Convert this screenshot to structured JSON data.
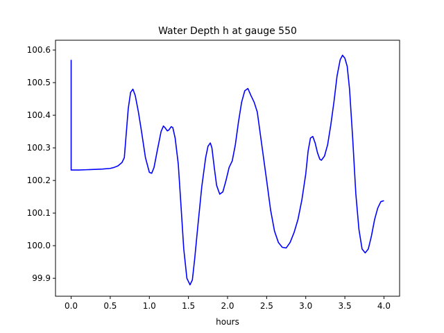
{
  "chart_data": {
    "type": "line",
    "title": "Water Depth h at gauge 550",
    "xlabel": "hours",
    "ylabel": "",
    "xlim": [
      -0.2,
      4.2
    ],
    "ylim": [
      99.845,
      100.63
    ],
    "xticks": [
      0.0,
      0.5,
      1.0,
      1.5,
      2.0,
      2.5,
      3.0,
      3.5,
      4.0
    ],
    "xtick_labels": [
      "0.0",
      "0.5",
      "1.0",
      "1.5",
      "2.0",
      "2.5",
      "3.0",
      "3.5",
      "4.0"
    ],
    "yticks": [
      99.9,
      100.0,
      100.1,
      100.2,
      100.3,
      100.4,
      100.5,
      100.6
    ],
    "ytick_labels": [
      "99.9",
      "100.0",
      "100.1",
      "100.2",
      "100.3",
      "100.4",
      "100.5",
      "100.6"
    ],
    "grid": false,
    "legend": "none",
    "series": [
      {
        "color": "#0000ff",
        "x": [
          0.0,
          0.0,
          0.0,
          0.1,
          0.2,
          0.3,
          0.4,
          0.5,
          0.55,
          0.6,
          0.65,
          0.68,
          0.7,
          0.73,
          0.76,
          0.79,
          0.82,
          0.86,
          0.9,
          0.95,
          1.0,
          1.03,
          1.06,
          1.1,
          1.15,
          1.18,
          1.2,
          1.23,
          1.25,
          1.28,
          1.3,
          1.33,
          1.37,
          1.4,
          1.44,
          1.48,
          1.52,
          1.55,
          1.58,
          1.62,
          1.67,
          1.72,
          1.75,
          1.78,
          1.8,
          1.83,
          1.86,
          1.9,
          1.94,
          1.98,
          2.02,
          2.06,
          2.1,
          2.14,
          2.18,
          2.22,
          2.26,
          2.3,
          2.34,
          2.38,
          2.42,
          2.46,
          2.5,
          2.55,
          2.6,
          2.65,
          2.7,
          2.75,
          2.8,
          2.85,
          2.9,
          2.95,
          3.0,
          3.03,
          3.06,
          3.09,
          3.12,
          3.15,
          3.18,
          3.2,
          3.24,
          3.28,
          3.32,
          3.36,
          3.4,
          3.44,
          3.47,
          3.5,
          3.53,
          3.56,
          3.6,
          3.64,
          3.68,
          3.72,
          3.76,
          3.8,
          3.84,
          3.88,
          3.92,
          3.96,
          4.0
        ],
        "y": [
          100.57,
          100.232,
          100.232,
          100.232,
          100.233,
          100.234,
          100.235,
          100.237,
          100.24,
          100.245,
          100.255,
          100.27,
          100.33,
          100.42,
          100.47,
          100.48,
          100.46,
          100.41,
          100.35,
          100.27,
          100.225,
          100.222,
          100.24,
          100.29,
          100.35,
          100.367,
          100.362,
          100.352,
          100.355,
          100.365,
          100.362,
          100.33,
          100.25,
          100.14,
          99.99,
          99.9,
          99.88,
          99.895,
          99.96,
          100.06,
          100.18,
          100.27,
          100.305,
          100.315,
          100.3,
          100.24,
          100.185,
          100.158,
          100.165,
          100.2,
          100.24,
          100.26,
          100.31,
          100.38,
          100.44,
          100.475,
          100.482,
          100.46,
          100.44,
          100.41,
          100.34,
          100.27,
          100.2,
          100.11,
          100.045,
          100.01,
          99.995,
          99.993,
          100.01,
          100.04,
          100.08,
          100.14,
          100.22,
          100.29,
          100.33,
          100.335,
          100.315,
          100.285,
          100.265,
          100.262,
          100.275,
          100.31,
          100.37,
          100.44,
          100.52,
          100.57,
          100.584,
          100.575,
          100.55,
          100.48,
          100.33,
          100.16,
          100.05,
          99.99,
          99.978,
          99.99,
          100.03,
          100.08,
          100.115,
          100.135,
          100.138
        ]
      }
    ]
  }
}
